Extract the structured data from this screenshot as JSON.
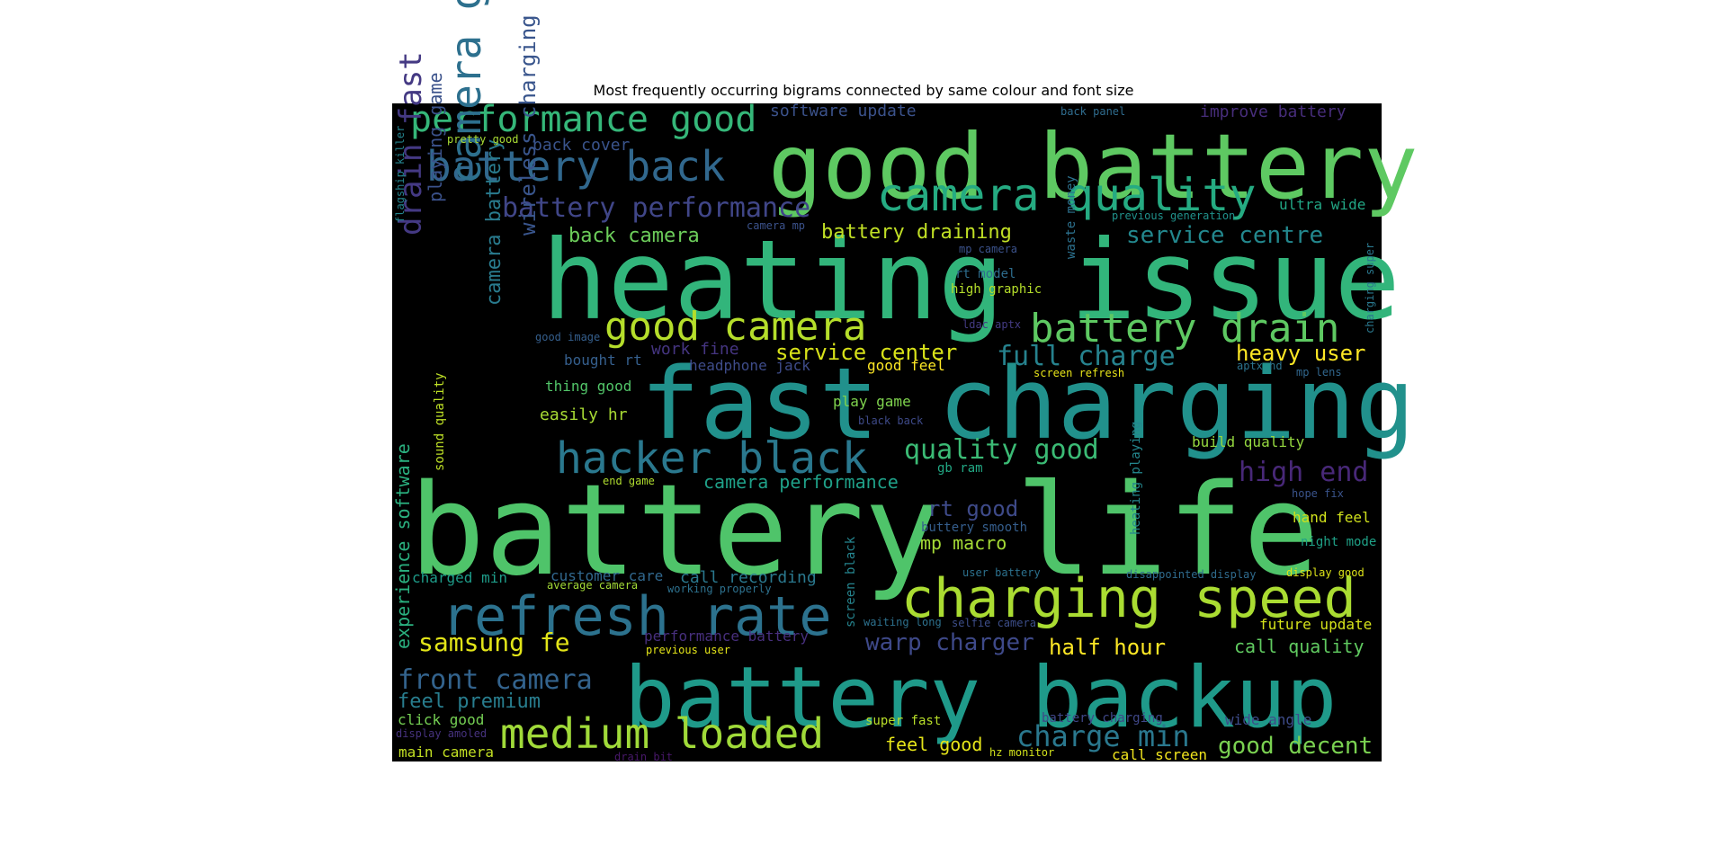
{
  "title": "Most frequently occurring bigrams connected by same colour and font size",
  "chart_data": {
    "type": "wordcloud",
    "title": "Most frequently occurring bigrams connected by same colour and font size",
    "background": "#000000",
    "words": [
      {
        "text": "battery life",
        "color": "#4fc46a"
      },
      {
        "text": "heating issue",
        "color": "#32b57b"
      },
      {
        "text": "fast charging",
        "color": "#21918c"
      },
      {
        "text": "good battery",
        "color": "#5ec962"
      },
      {
        "text": "battery backup",
        "color": "#1f9a8a"
      },
      {
        "text": "charging speed",
        "color": "#aadc32"
      },
      {
        "text": "refresh rate",
        "color": "#2c728e"
      },
      {
        "text": "medium loaded",
        "color": "#a0da39"
      },
      {
        "text": "hacker black",
        "color": "#2a788e"
      },
      {
        "text": "camera quality",
        "color": "#25ab82"
      },
      {
        "text": "good camera",
        "color": "#b5de2b"
      },
      {
        "text": "battery drain",
        "color": "#5ec962"
      },
      {
        "text": "battery back",
        "color": "#31688e"
      },
      {
        "text": "performance good",
        "color": "#35b779"
      },
      {
        "text": "camera good",
        "color": "#2d708e"
      },
      {
        "text": "drain fast",
        "color": "#443983"
      },
      {
        "text": "battery performance",
        "color": "#404688"
      },
      {
        "text": "quality good",
        "color": "#3bbb75"
      },
      {
        "text": "full charge",
        "color": "#26828e"
      },
      {
        "text": "charge min",
        "color": "#2a788e"
      },
      {
        "text": "heavy user",
        "color": "#fde725"
      },
      {
        "text": "high end",
        "color": "#482878"
      },
      {
        "text": "front camera",
        "color": "#33638d"
      },
      {
        "text": "samsung fe",
        "color": "#e2e418"
      },
      {
        "text": "warp charger",
        "color": "#3e4989"
      },
      {
        "text": "wireless charging",
        "color": "#39558c"
      },
      {
        "text": "camera battery",
        "color": "#297b8e"
      },
      {
        "text": "service centre",
        "color": "#23888e"
      },
      {
        "text": "service center",
        "color": "#d8e219"
      },
      {
        "text": "rt good",
        "color": "#3e4a89"
      },
      {
        "text": "half hour",
        "color": "#fde725"
      },
      {
        "text": "good decent",
        "color": "#7ad151"
      },
      {
        "text": "feel premium",
        "color": "#287d8e"
      },
      {
        "text": "playing game",
        "color": "#3b528b"
      },
      {
        "text": "mp macro",
        "color": "#a5db36"
      },
      {
        "text": "back camera",
        "color": "#6ccd5a"
      },
      {
        "text": "battery draining",
        "color": "#c0df25"
      },
      {
        "text": "camera performance",
        "color": "#1fa088"
      },
      {
        "text": "call recording",
        "color": "#2a788e"
      },
      {
        "text": "software update",
        "color": "#3b528b"
      },
      {
        "text": "improve battery",
        "color": "#472d7b"
      },
      {
        "text": "back cover",
        "color": "#3a548c"
      },
      {
        "text": "experience software",
        "color": "#2ab07f"
      },
      {
        "text": "feel good",
        "color": "#e5e419"
      },
      {
        "text": "call quality",
        "color": "#60ca60"
      },
      {
        "text": "main camera",
        "color": "#c2df23"
      },
      {
        "text": "work fine",
        "color": "#453581"
      },
      {
        "text": "customer care",
        "color": "#31688e"
      },
      {
        "text": "play game",
        "color": "#7fd34e"
      },
      {
        "text": "good feel",
        "color": "#fde725"
      },
      {
        "text": "future update",
        "color": "#d5e21a"
      },
      {
        "text": "call screen",
        "color": "#f1e51d"
      },
      {
        "text": "build quality",
        "color": "#95d840"
      },
      {
        "text": "hand feel",
        "color": "#d0e11c"
      },
      {
        "text": "click good",
        "color": "#75d054"
      },
      {
        "text": "easily hr",
        "color": "#a8db34"
      },
      {
        "text": "thing good",
        "color": "#52c569"
      },
      {
        "text": "ultra wide",
        "color": "#22a785"
      },
      {
        "text": "bought rt",
        "color": "#355f8d"
      },
      {
        "text": "wide angle",
        "color": "#3e4c8a"
      },
      {
        "text": "sound quality",
        "color": "#bddf26"
      },
      {
        "text": "headphone jack",
        "color": "#3e4c8a"
      },
      {
        "text": "performance battery",
        "color": "#472f7d"
      },
      {
        "text": "screen black",
        "color": "#25848e"
      },
      {
        "text": "heating playing",
        "color": "#24878e"
      },
      {
        "text": "waste money",
        "color": "#2c718e"
      },
      {
        "text": "night mode",
        "color": "#1fa187"
      },
      {
        "text": "super fast",
        "color": "#b8de29"
      },
      {
        "text": "charged min",
        "color": "#1e9c89"
      },
      {
        "text": "rt model",
        "color": "#2e6d8e"
      },
      {
        "text": "high graphic",
        "color": "#b5de2b"
      },
      {
        "text": "battery charging",
        "color": "#3f4788"
      },
      {
        "text": "flagship killer",
        "color": "#25848e"
      },
      {
        "text": "buttery smooth",
        "color": "#355e8d"
      },
      {
        "text": "back panel",
        "color": "#2f6c8e"
      },
      {
        "text": "pretty good",
        "color": "#a8db34"
      },
      {
        "text": "gb ram",
        "color": "#22a884"
      },
      {
        "text": "display good",
        "color": "#dde318"
      },
      {
        "text": "mp lens",
        "color": "#31678e"
      },
      {
        "text": "previous generation",
        "color": "#20928c"
      },
      {
        "text": "charging super",
        "color": "#2a788e"
      },
      {
        "text": "ldac aptx",
        "color": "#443b84"
      },
      {
        "text": "screen refresh",
        "color": "#e7e419"
      },
      {
        "text": "aptx hd",
        "color": "#2c738e"
      },
      {
        "text": "working properly",
        "color": "#2d718e"
      },
      {
        "text": "average camera",
        "color": "#a2da37"
      },
      {
        "text": "disappointed display",
        "color": "#2f6b8e"
      },
      {
        "text": "user battery",
        "color": "#2c718e"
      },
      {
        "text": "end game",
        "color": "#b0dd2f"
      },
      {
        "text": "hope fix",
        "color": "#3a548c"
      },
      {
        "text": "waiting long",
        "color": "#2d718e"
      },
      {
        "text": "selfie camera",
        "color": "#3d4e8a"
      },
      {
        "text": "previous user",
        "color": "#e3e418"
      },
      {
        "text": "hz monitor",
        "color": "#d2e21b"
      },
      {
        "text": "good image",
        "color": "#355f8d"
      },
      {
        "text": "camera mp",
        "color": "#3b528b"
      },
      {
        "text": "mp camera",
        "color": "#3b528b"
      },
      {
        "text": "black back",
        "color": "#3e4a89"
      },
      {
        "text": "display amoled",
        "color": "#46327e"
      },
      {
        "text": "drain bit",
        "color": "#48186a"
      }
    ]
  }
}
